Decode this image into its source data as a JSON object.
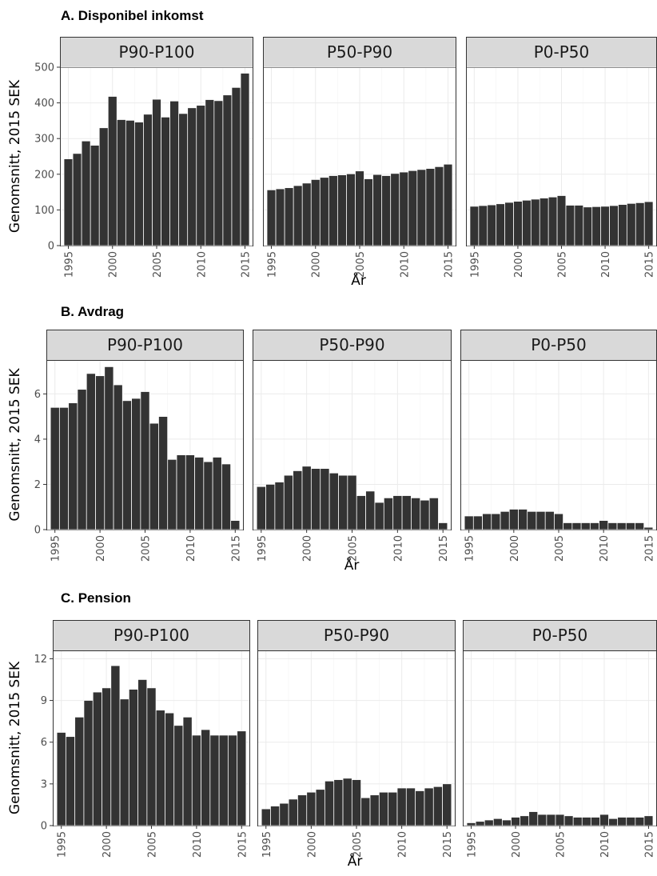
{
  "chart_data": [
    {
      "type": "bar",
      "title": "A. Disponibel inkomst",
      "ylabel": "Genomsnitt, 2015 SEK",
      "xlabel": "År",
      "ylim": [
        0,
        500
      ],
      "y_ticks": [
        0,
        100,
        200,
        300,
        400,
        500
      ],
      "x_ticks": [
        1995,
        2000,
        2005,
        2010,
        2015
      ],
      "x": [
        1995,
        1996,
        1997,
        1998,
        1999,
        2000,
        2001,
        2002,
        2003,
        2004,
        2005,
        2006,
        2007,
        2008,
        2009,
        2010,
        2011,
        2012,
        2013,
        2014,
        2015
      ],
      "facets": [
        {
          "name": "P90-P100",
          "values": [
            243,
            258,
            293,
            281,
            330,
            418,
            353,
            351,
            346,
            368,
            410,
            360,
            405,
            370,
            386,
            393,
            409,
            406,
            422,
            443,
            483
          ]
        },
        {
          "name": "P50-P90",
          "values": [
            156,
            159,
            162,
            168,
            175,
            185,
            191,
            196,
            198,
            201,
            209,
            187,
            199,
            196,
            202,
            206,
            210,
            213,
            216,
            221,
            228
          ]
        },
        {
          "name": "P0-P50",
          "values": [
            110,
            112,
            114,
            117,
            121,
            124,
            127,
            130,
            133,
            136,
            140,
            113,
            113,
            108,
            109,
            110,
            112,
            115,
            118,
            120,
            123
          ]
        }
      ]
    },
    {
      "type": "bar",
      "title": "B. Avdrag",
      "ylabel": "Genomsnitt, 2015 SEK",
      "xlabel": "År",
      "ylim": [
        0,
        7.5
      ],
      "y_ticks": [
        0,
        2,
        4,
        6
      ],
      "x_ticks": [
        1995,
        2000,
        2005,
        2010,
        2015
      ],
      "x": [
        1995,
        1996,
        1997,
        1998,
        1999,
        2000,
        2001,
        2002,
        2003,
        2004,
        2005,
        2006,
        2007,
        2008,
        2009,
        2010,
        2011,
        2012,
        2013,
        2014,
        2015
      ],
      "facets": [
        {
          "name": "P90-P100",
          "values": [
            5.4,
            5.4,
            5.6,
            6.2,
            6.9,
            6.8,
            7.2,
            6.4,
            5.7,
            5.8,
            6.1,
            4.7,
            5.0,
            3.1,
            3.3,
            3.3,
            3.2,
            3.0,
            3.2,
            2.9,
            0.4
          ]
        },
        {
          "name": "P50-P90",
          "values": [
            1.9,
            2.0,
            2.1,
            2.4,
            2.6,
            2.8,
            2.7,
            2.7,
            2.5,
            2.4,
            2.4,
            1.5,
            1.7,
            1.2,
            1.4,
            1.5,
            1.5,
            1.4,
            1.3,
            1.4,
            0.3
          ]
        },
        {
          "name": "P0-P50",
          "values": [
            0.6,
            0.6,
            0.7,
            0.7,
            0.8,
            0.9,
            0.9,
            0.8,
            0.8,
            0.8,
            0.7,
            0.3,
            0.3,
            0.3,
            0.3,
            0.4,
            0.3,
            0.3,
            0.3,
            0.3,
            0.1
          ]
        }
      ]
    },
    {
      "type": "bar",
      "title": "C. Pension",
      "ylabel": "Genomsnitt, 2015 SEK",
      "xlabel": "År",
      "ylim": [
        0,
        12.6
      ],
      "y_ticks": [
        0,
        3,
        6,
        9,
        12
      ],
      "x_ticks": [
        1995,
        2000,
        2005,
        2010,
        2015
      ],
      "x": [
        1995,
        1996,
        1997,
        1998,
        1999,
        2000,
        2001,
        2002,
        2003,
        2004,
        2005,
        2006,
        2007,
        2008,
        2009,
        2010,
        2011,
        2012,
        2013,
        2014,
        2015
      ],
      "facets": [
        {
          "name": "P90-P100",
          "values": [
            6.7,
            6.4,
            7.8,
            9.0,
            9.6,
            9.9,
            11.5,
            9.1,
            9.8,
            10.5,
            9.9,
            8.3,
            8.1,
            7.2,
            7.8,
            6.5,
            6.9,
            6.5,
            6.5,
            6.5,
            6.8
          ]
        },
        {
          "name": "P50-P90",
          "values": [
            1.2,
            1.4,
            1.6,
            1.9,
            2.2,
            2.4,
            2.6,
            3.2,
            3.3,
            3.4,
            3.3,
            2.0,
            2.2,
            2.4,
            2.4,
            2.7,
            2.7,
            2.5,
            2.7,
            2.8,
            3.0
          ]
        },
        {
          "name": "P0-P50",
          "values": [
            0.2,
            0.3,
            0.4,
            0.5,
            0.4,
            0.6,
            0.7,
            1.0,
            0.8,
            0.8,
            0.8,
            0.7,
            0.6,
            0.6,
            0.6,
            0.8,
            0.5,
            0.6,
            0.6,
            0.6,
            0.7
          ]
        }
      ]
    }
  ]
}
